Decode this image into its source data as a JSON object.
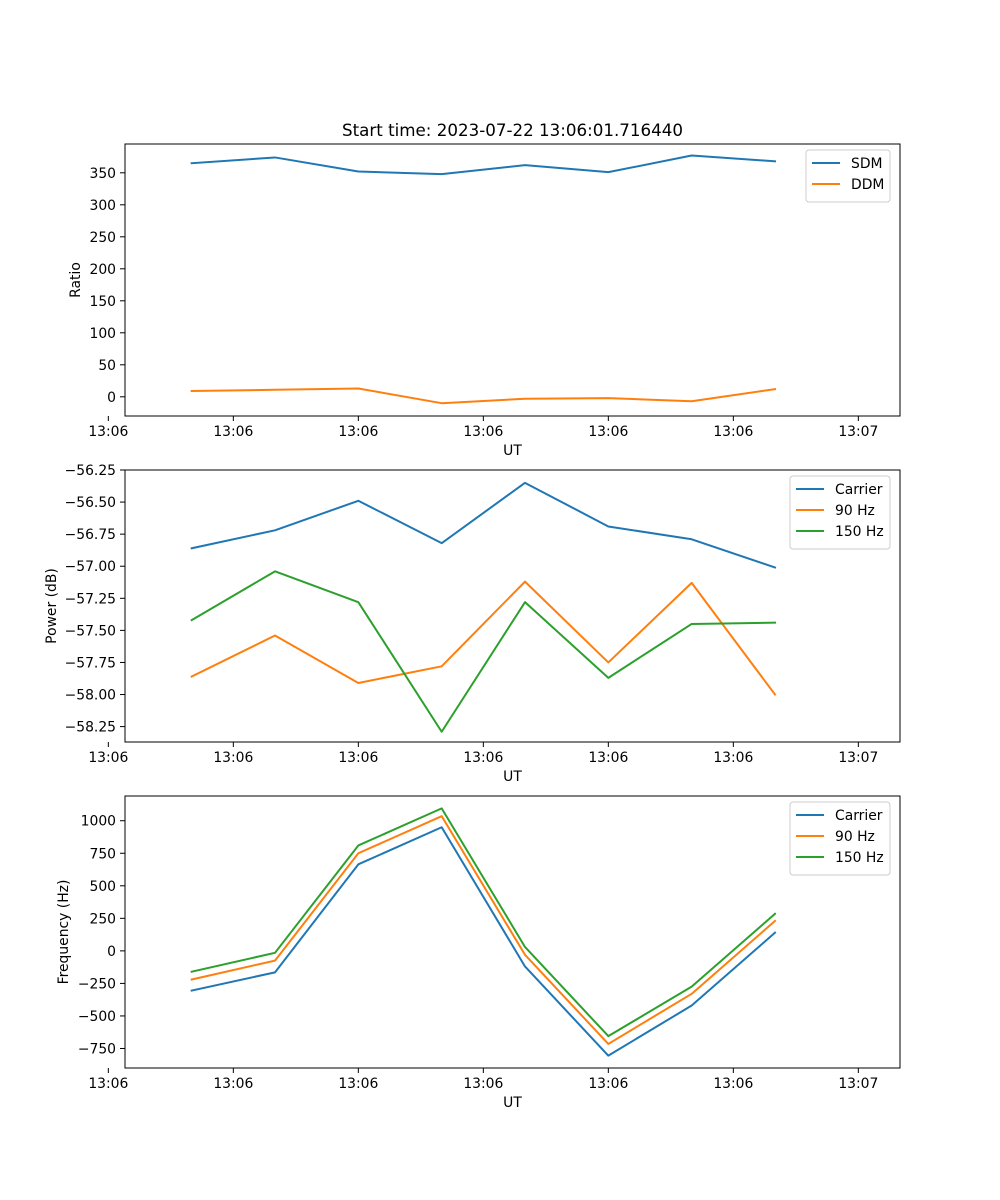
{
  "figure": {
    "title": "Start time: 2023-07-22 13:06:01.716440"
  },
  "chart_data": [
    {
      "type": "line",
      "title": "Start time: 2023-07-22 13:06:01.716440",
      "xlabel": "UT",
      "ylabel": "Ratio",
      "x": [
        1,
        2,
        3,
        4,
        5,
        6,
        7,
        8
      ],
      "xlim": [
        0.2,
        9.5
      ],
      "xticks": [
        0,
        1.5,
        3,
        4.5,
        6,
        7.5,
        9
      ],
      "xtick_labels": [
        "13:06",
        "13:06",
        "13:06",
        "13:06",
        "13:06",
        "13:06",
        "13:07"
      ],
      "ylim": [
        -30,
        395
      ],
      "yticks": [
        0,
        50,
        100,
        150,
        200,
        250,
        300,
        350
      ],
      "ytick_labels": [
        "0",
        "50",
        "100",
        "150",
        "200",
        "250",
        "300",
        "350"
      ],
      "legend": "upper-right",
      "series": [
        {
          "name": "SDM",
          "color": "#1f77b4",
          "values": [
            365,
            374,
            352,
            348,
            362,
            351,
            377,
            368
          ]
        },
        {
          "name": "DDM",
          "color": "#ff7f0e",
          "values": [
            9,
            11,
            13,
            -10,
            -3,
            -2,
            -7,
            12
          ]
        }
      ]
    },
    {
      "type": "line",
      "xlabel": "UT",
      "ylabel": "Power (dB)",
      "x": [
        1,
        2,
        3,
        4,
        5,
        6,
        7,
        8
      ],
      "xlim": [
        0.2,
        9.5
      ],
      "xticks": [
        0,
        1.5,
        3,
        4.5,
        6,
        7.5,
        9
      ],
      "xtick_labels": [
        "13:06",
        "13:06",
        "13:06",
        "13:06",
        "13:06",
        "13:06",
        "13:07"
      ],
      "ylim": [
        -58.37,
        -56.25
      ],
      "yticks": [
        -58.25,
        -58.0,
        -57.75,
        -57.5,
        -57.25,
        -57.0,
        -56.75,
        -56.5,
        -56.25
      ],
      "ytick_labels": [
        "−58.25",
        "−58.00",
        "−57.75",
        "−57.50",
        "−57.25",
        "−57.00",
        "−56.75",
        "−56.50",
        "−56.25"
      ],
      "legend": "upper-right",
      "series": [
        {
          "name": "Carrier",
          "color": "#1f77b4",
          "values": [
            -56.86,
            -56.72,
            -56.49,
            -56.82,
            -56.35,
            -56.69,
            -56.79,
            -57.01
          ]
        },
        {
          "name": "90 Hz",
          "color": "#ff7f0e",
          "values": [
            -57.86,
            -57.54,
            -57.91,
            -57.78,
            -57.12,
            -57.75,
            -57.13,
            -58.0
          ]
        },
        {
          "name": "150 Hz",
          "color": "#2ca02c",
          "values": [
            -57.42,
            -57.04,
            -57.28,
            -58.29,
            -57.28,
            -57.87,
            -57.45,
            -57.44
          ]
        }
      ]
    },
    {
      "type": "line",
      "xlabel": "UT",
      "ylabel": "Frequency (Hz)",
      "x": [
        1,
        2,
        3,
        4,
        5,
        6,
        7,
        8
      ],
      "xlim": [
        0.2,
        9.5
      ],
      "xticks": [
        0,
        1.5,
        3,
        4.5,
        6,
        7.5,
        9
      ],
      "xtick_labels": [
        "13:06",
        "13:06",
        "13:06",
        "13:06",
        "13:06",
        "13:06",
        "13:07"
      ],
      "ylim": [
        -900,
        1190
      ],
      "yticks": [
        -750,
        -500,
        -250,
        0,
        250,
        500,
        750,
        1000
      ],
      "ytick_labels": [
        "−750",
        "−500",
        "−250",
        "0",
        "250",
        "500",
        "750",
        "1000"
      ],
      "legend": "upper-right",
      "series": [
        {
          "name": "Carrier",
          "color": "#1f77b4",
          "values": [
            -305,
            -165,
            665,
            950,
            -120,
            -805,
            -420,
            140
          ]
        },
        {
          "name": "90 Hz",
          "color": "#ff7f0e",
          "values": [
            -220,
            -75,
            750,
            1035,
            -30,
            -715,
            -330,
            230
          ]
        },
        {
          "name": "150 Hz",
          "color": "#2ca02c",
          "values": [
            -160,
            -15,
            810,
            1095,
            30,
            -655,
            -275,
            285
          ]
        }
      ]
    }
  ]
}
